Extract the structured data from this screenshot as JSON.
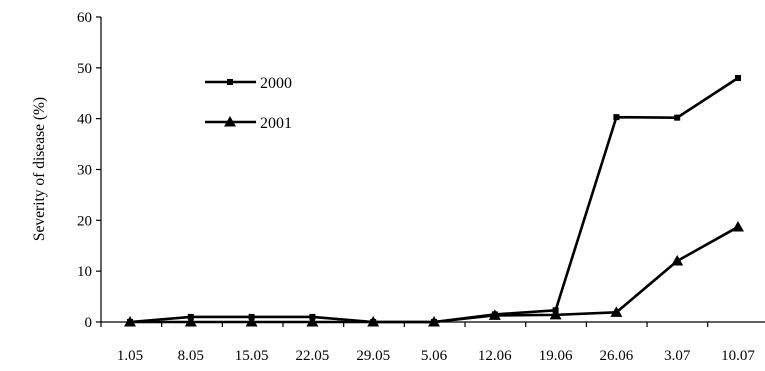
{
  "chart_data": {
    "type": "line",
    "ylabel": "Severity of disease (%)",
    "xlabel": "",
    "ylim": [
      0,
      60
    ],
    "y_ticks": [
      0,
      10,
      20,
      30,
      40,
      50,
      60
    ],
    "categories": [
      "1.05",
      "8.05",
      "15.05",
      "22.05",
      "29.05",
      "5.06",
      "12.06",
      "19.06",
      "26.06",
      "3.07",
      "10.07"
    ],
    "grid": false,
    "legend_position": "top-left",
    "series": [
      {
        "name": "2000",
        "marker": "square",
        "color": "#000000",
        "values": [
          0,
          1,
          1,
          1,
          0,
          0,
          1.5,
          2.3,
          40.3,
          40.2,
          48
        ]
      },
      {
        "name": "2001",
        "marker": "triangle",
        "color": "#000000",
        "values": [
          0,
          0,
          0,
          0,
          0,
          0,
          1.3,
          1.4,
          1.9,
          12,
          18.7
        ]
      }
    ]
  }
}
